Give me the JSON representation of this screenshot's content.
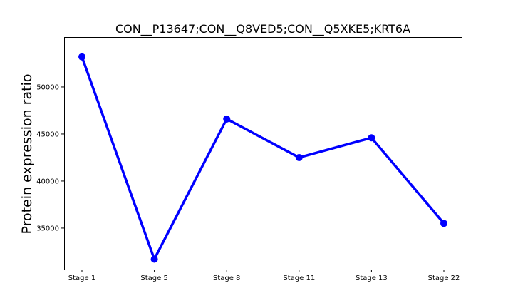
{
  "chart_data": {
    "type": "line",
    "title": "CON__P13647;CON__Q8VED5;CON__Q5XKE5;KRT6A",
    "xlabel": "",
    "ylabel": "Protein expression ratio",
    "categories": [
      "Stage 1",
      "Stage 5",
      "Stage 8",
      "Stage 11",
      "Stage 13",
      "Stage 22"
    ],
    "series": [
      {
        "values": [
          53200,
          31700,
          46600,
          42500,
          44600,
          35500
        ]
      }
    ],
    "yticks": [
      35000,
      40000,
      45000,
      50000
    ],
    "ylim": [
      30600,
      55300
    ],
    "grid": false,
    "legend": "none",
    "line_color": "#0000ff",
    "marker": "circle"
  }
}
